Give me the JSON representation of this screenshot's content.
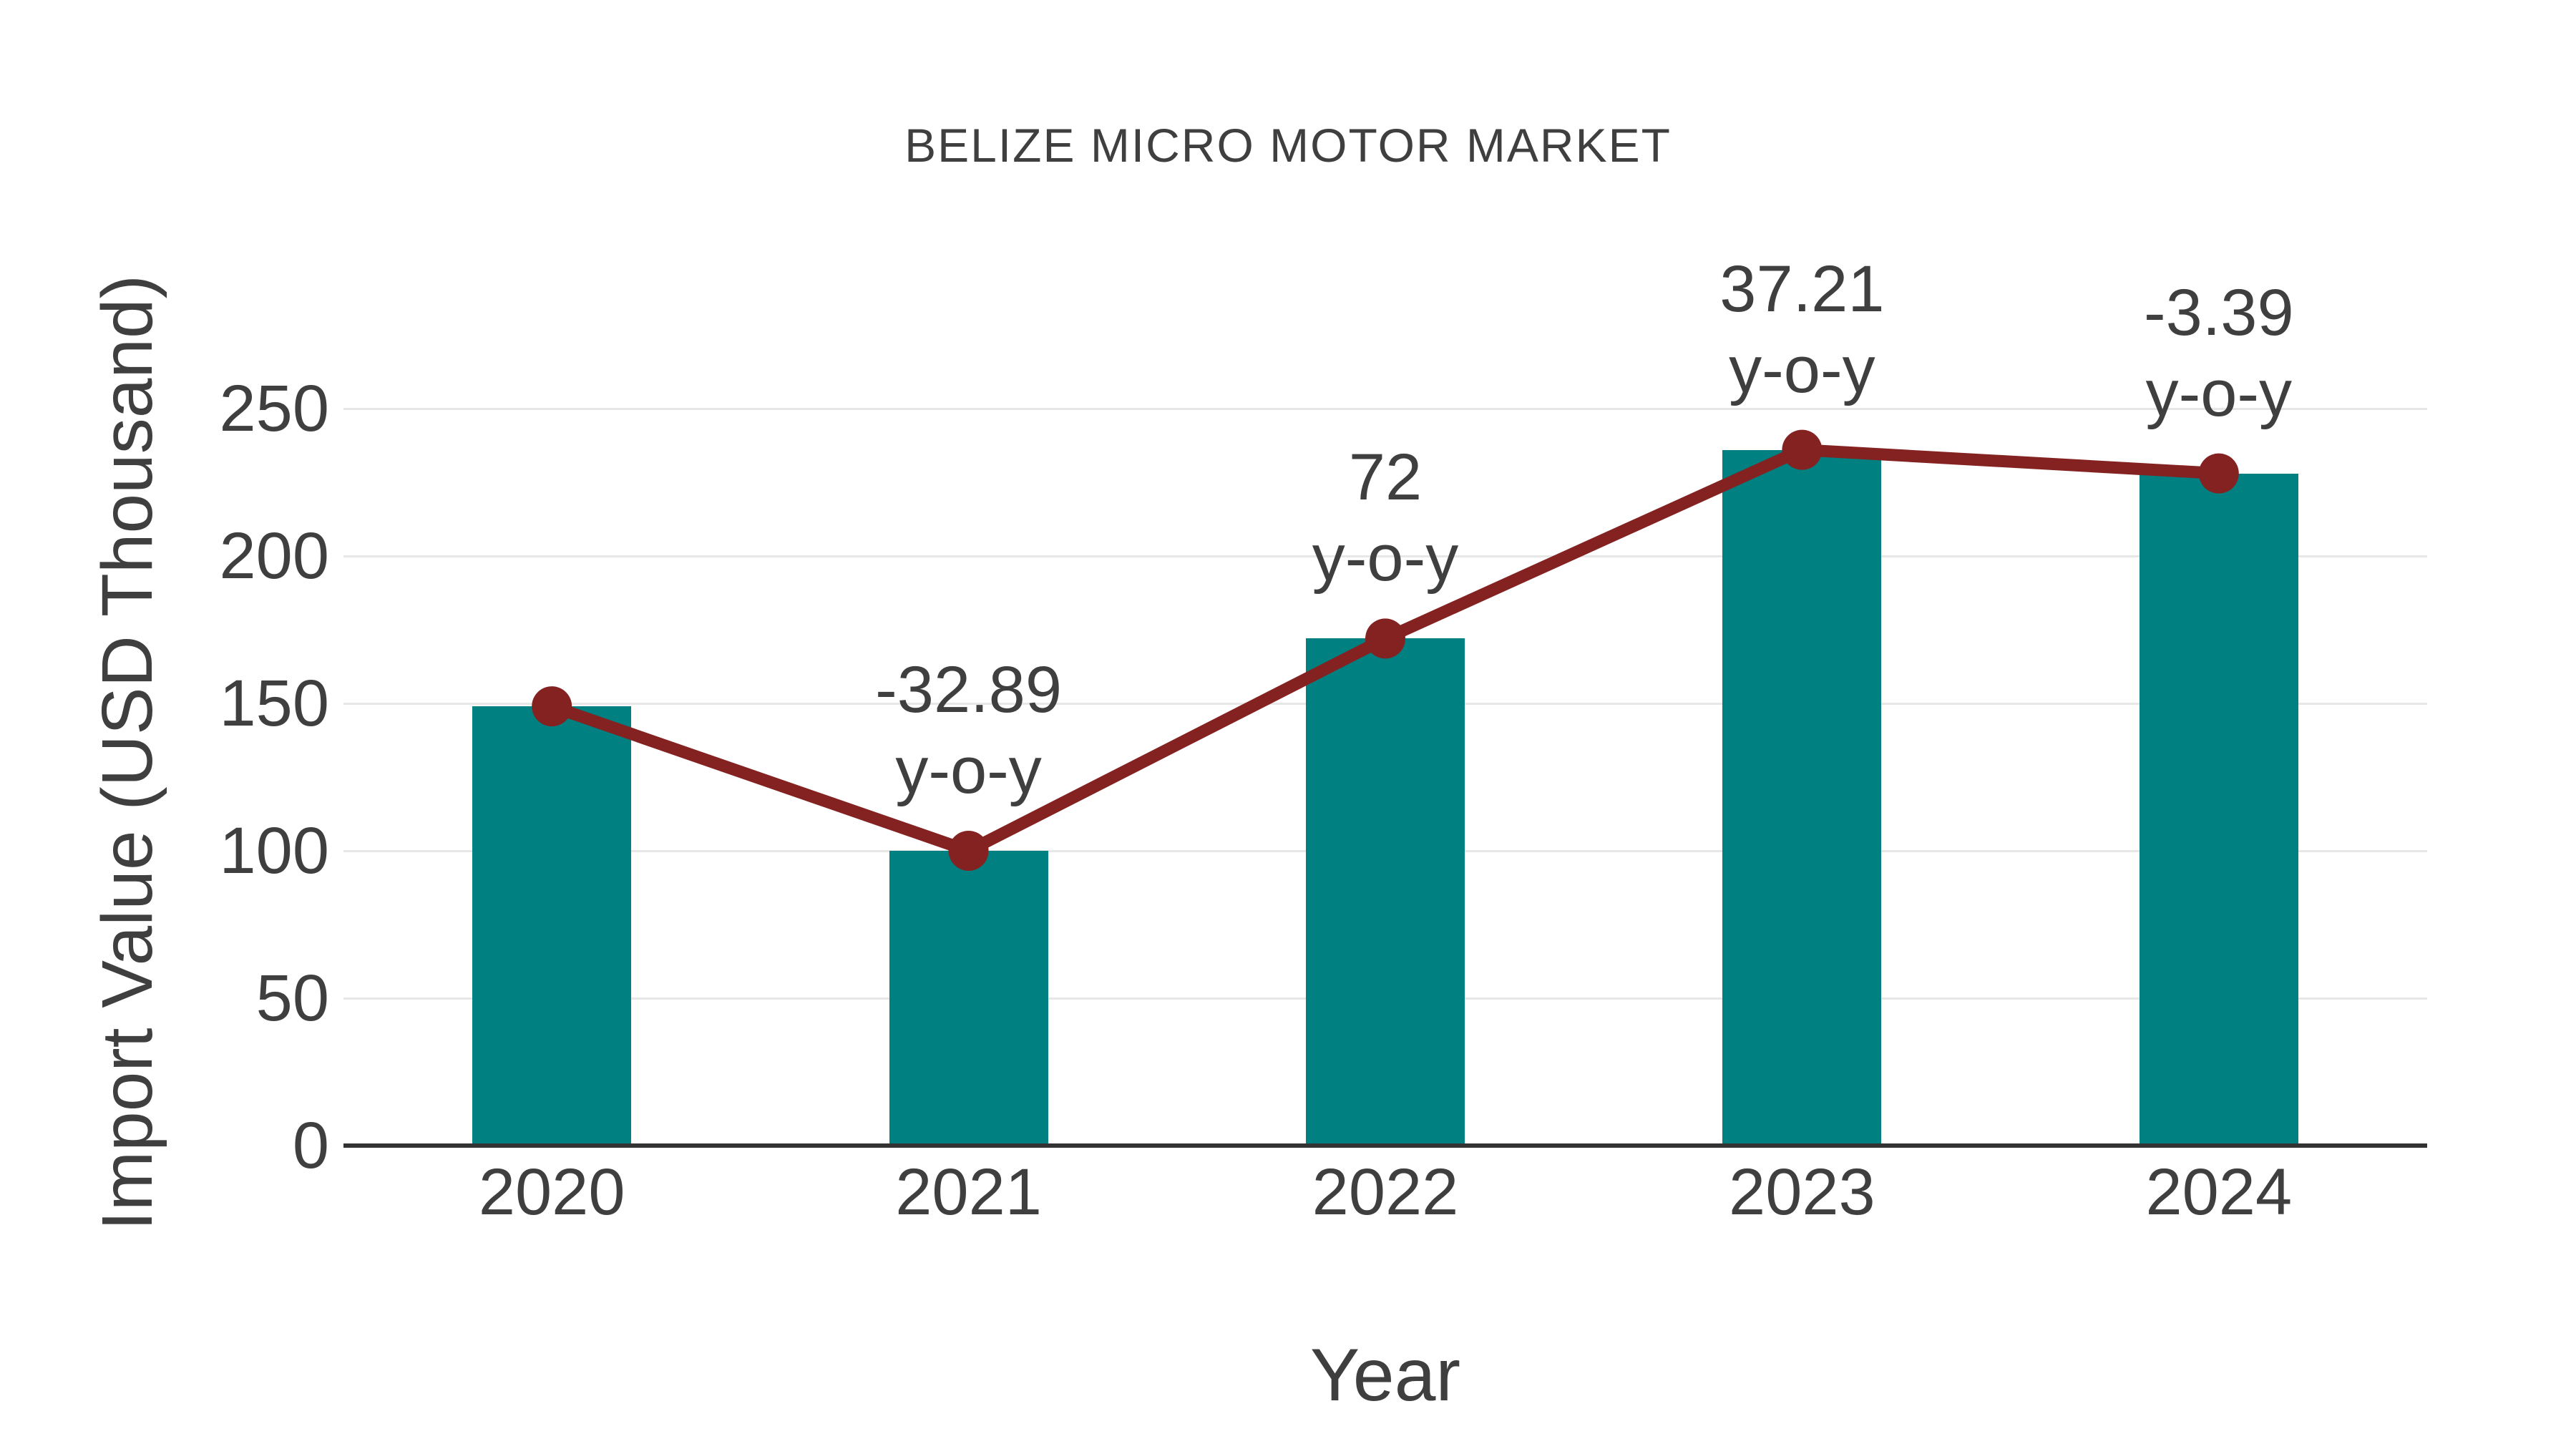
{
  "chart_data": {
    "type": "combo-bar-line",
    "title": "BELIZE MICRO MOTOR MARKET",
    "xlabel": "Year",
    "ylabel": "Import Value (USD Thousand)",
    "categories": [
      "2020",
      "2021",
      "2022",
      "2023",
      "2024"
    ],
    "series": [
      {
        "name": "Import Value",
        "type": "bar",
        "color": "#008080",
        "values": [
          149,
          100,
          172,
          236,
          228
        ]
      },
      {
        "name": "y-o-y trend line",
        "type": "line",
        "color": "#842222",
        "values": [
          149,
          100,
          172,
          236,
          228
        ]
      }
    ],
    "annotations": [
      {
        "category": "2021",
        "value_label": "-32.89",
        "sub_label": "y-o-y"
      },
      {
        "category": "2022",
        "value_label": "72",
        "sub_label": "y-o-y"
      },
      {
        "category": "2023",
        "value_label": "37.21",
        "sub_label": "y-o-y"
      },
      {
        "category": "2024",
        "value_label": "-3.39",
        "sub_label": "y-o-y"
      }
    ],
    "yticks": [
      0,
      50,
      100,
      150,
      200,
      250
    ],
    "ylim": [
      0,
      250
    ],
    "grid": true,
    "legend_position": "none",
    "text_color": "#3f3f3f",
    "grid_color": "#e7e7e7",
    "axis_line_color": "#333333"
  }
}
